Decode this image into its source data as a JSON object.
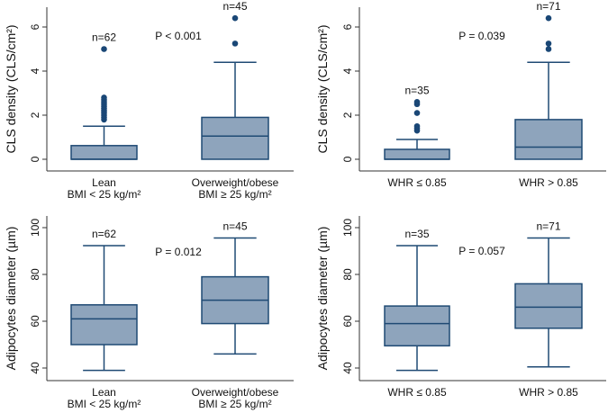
{
  "colors": {
    "box_fill": "#8ea4bc",
    "box_stroke": "#1f4a74",
    "outlier": "#1a4776",
    "axis": "#333333"
  },
  "chart_data": [
    {
      "type": "box",
      "ylabel": "CLS density (CLS/cm²)",
      "ylim": [
        0,
        6.9
      ],
      "yticks": [
        0,
        2,
        4,
        6
      ],
      "p_label": "P < 0.001",
      "groups": [
        {
          "label1": "Lean",
          "label2": "BMI < 25 kg/m²",
          "n_label": "n=62",
          "whisker_low": 0,
          "q1": 0,
          "median": 0,
          "q3": 0.62,
          "whisker_high": 1.5,
          "outliers": [
            1.8,
            1.9,
            2.0,
            2.1,
            2.2,
            2.3,
            2.4,
            2.5,
            2.6,
            2.7,
            2.8,
            5.0
          ]
        },
        {
          "label1": "Overweight/obese",
          "label2": "BMI ≥ 25 kg/m²",
          "n_label": "n=45",
          "whisker_low": 0,
          "q1": 0,
          "median": 1.05,
          "q3": 1.9,
          "whisker_high": 4.4,
          "outliers": [
            5.25,
            6.4
          ]
        }
      ]
    },
    {
      "type": "box",
      "ylabel": "CLS density (CLS/cm²)",
      "ylim": [
        0,
        6.9
      ],
      "yticks": [
        0,
        2,
        4,
        6
      ],
      "p_label": "P = 0.039",
      "groups": [
        {
          "label1": "WHR ≤  0.85",
          "label2": "",
          "n_label": "n=35",
          "whisker_low": 0,
          "q1": 0,
          "median": 0,
          "q3": 0.45,
          "whisker_high": 0.9,
          "outliers": [
            1.3,
            1.4,
            1.5,
            2.1,
            2.5,
            2.6
          ]
        },
        {
          "label1": "WHR > 0.85",
          "label2": "",
          "n_label": "n=71",
          "whisker_low": 0,
          "q1": 0,
          "median": 0.55,
          "q3": 1.8,
          "whisker_high": 4.4,
          "outliers": [
            5.0,
            5.25,
            6.4
          ]
        }
      ]
    },
    {
      "type": "box",
      "ylabel": "Adipocytes diameter (µm)",
      "ylim": [
        35,
        105
      ],
      "yticks": [
        40,
        60,
        80,
        100
      ],
      "p_label": "P = 0.012",
      "groups": [
        {
          "label1": "Lean",
          "label2": "BMI < 25 kg/m²",
          "n_label": "n=62",
          "whisker_low": 39,
          "q1": 50,
          "median": 61,
          "q3": 67,
          "whisker_high": 92.3,
          "outliers": []
        },
        {
          "label1": "Overweight/obese",
          "label2": "BMI ≥ 25 kg/m²",
          "n_label": "n=45",
          "whisker_low": 46,
          "q1": 59,
          "median": 69,
          "q3": 79,
          "whisker_high": 95.6,
          "outliers": []
        }
      ]
    },
    {
      "type": "box",
      "ylabel": "Adipocytes diameter (µm)",
      "ylim": [
        35,
        105
      ],
      "yticks": [
        40,
        60,
        80,
        100
      ],
      "p_label": "P = 0.057",
      "groups": [
        {
          "label1": "WHR ≤  0.85",
          "label2": "",
          "n_label": "n=35",
          "whisker_low": 39,
          "q1": 49.5,
          "median": 59,
          "q3": 66.5,
          "whisker_high": 92.3,
          "outliers": []
        },
        {
          "label1": "WHR > 0.85",
          "label2": "",
          "n_label": "n=71",
          "whisker_low": 40.5,
          "q1": 57,
          "median": 66,
          "q3": 76,
          "whisker_high": 95.6,
          "outliers": []
        }
      ]
    }
  ]
}
